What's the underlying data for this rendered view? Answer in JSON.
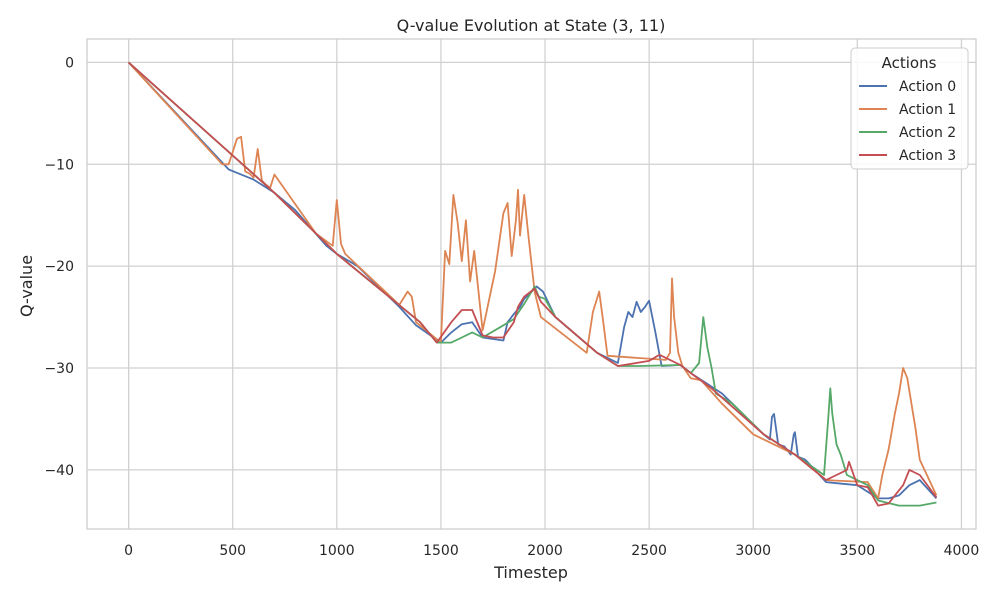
{
  "chart_data": {
    "type": "line",
    "title": "Q-value Evolution at State (3, 11)",
    "xlabel": "Timestep",
    "ylabel": "Q-value",
    "xlim": [
      -200,
      4070
    ],
    "ylim": [
      -45.8,
      2.3
    ],
    "xticks": [
      0,
      500,
      1000,
      1500,
      2000,
      2500,
      3000,
      3500,
      4000
    ],
    "yticks": [
      0,
      -10,
      -20,
      -30,
      -40
    ],
    "xtick_labels": [
      "0",
      "500",
      "1000",
      "1500",
      "2000",
      "2500",
      "3000",
      "3500",
      "4000"
    ],
    "ytick_labels": [
      "0",
      "−10",
      "−20",
      "−30",
      "−40"
    ],
    "grid": true,
    "legend": {
      "title": "Actions",
      "placement": "top-right"
    },
    "series": [
      {
        "name": "Action 0",
        "color": "#4c72b0",
        "x": [
          0,
          480,
          600,
          700,
          800,
          950,
          1000,
          1100,
          1300,
          1380,
          1500,
          1550,
          1600,
          1650,
          1700,
          1800,
          1820,
          1850,
          1880,
          1900,
          1950,
          1960,
          1990,
          2050,
          2250,
          2350,
          2380,
          2400,
          2420,
          2440,
          2460,
          2480,
          2500,
          2530,
          2560,
          2650,
          2700,
          2850,
          3050,
          3080,
          3090,
          3100,
          3120,
          3150,
          3180,
          3195,
          3200,
          3215,
          3250,
          3350,
          3400,
          3450,
          3500,
          3600,
          3650,
          3700,
          3750,
          3800,
          3880
        ],
        "y": [
          0,
          -10.5,
          -11.5,
          -12.8,
          -14.5,
          -18.0,
          -18.8,
          -20.0,
          -24.0,
          -25.8,
          -27.5,
          -26.5,
          -25.7,
          -25.5,
          -27.0,
          -27.3,
          -25.5,
          -24.7,
          -24.0,
          -23.2,
          -22.2,
          -22.0,
          -22.5,
          -25.0,
          -28.5,
          -29.5,
          -26.0,
          -24.5,
          -25.0,
          -23.5,
          -24.5,
          -24.0,
          -23.4,
          -26.5,
          -29.8,
          -29.7,
          -30.5,
          -32.5,
          -36.5,
          -37.0,
          -34.8,
          -34.5,
          -37.5,
          -37.7,
          -38.5,
          -36.5,
          -36.3,
          -38.7,
          -39.0,
          -41.2,
          -41.3,
          -41.4,
          -41.5,
          -42.8,
          -42.8,
          -42.5,
          -41.5,
          -41.0,
          -42.8
        ]
      },
      {
        "name": "Action 1",
        "color": "#dd8452",
        "x": [
          0,
          450,
          480,
          500,
          520,
          540,
          560,
          580,
          600,
          620,
          640,
          660,
          680,
          700,
          900,
          980,
          1000,
          1020,
          1040,
          1300,
          1340,
          1360,
          1380,
          1500,
          1520,
          1540,
          1560,
          1580,
          1600,
          1620,
          1640,
          1660,
          1700,
          1760,
          1800,
          1820,
          1840,
          1860,
          1870,
          1880,
          1900,
          1920,
          1950,
          1980,
          2200,
          2230,
          2260,
          2280,
          2300,
          2580,
          2600,
          2610,
          2620,
          2640,
          2660,
          2700,
          2750,
          2850,
          3000,
          3200,
          3350,
          3550,
          3600,
          3620,
          3650,
          3680,
          3700,
          3720,
          3740,
          3780,
          3800,
          3880
        ],
        "y": [
          0,
          -10.0,
          -10.0,
          -8.8,
          -7.5,
          -7.3,
          -10.7,
          -10.9,
          -11.3,
          -8.5,
          -11.6,
          -12.0,
          -12.3,
          -11.0,
          -16.8,
          -18.0,
          -13.5,
          -17.8,
          -18.8,
          -23.8,
          -22.5,
          -23.0,
          -25.5,
          -27.5,
          -18.5,
          -19.8,
          -13.0,
          -15.7,
          -19.5,
          -15.5,
          -21.5,
          -18.5,
          -26.3,
          -20.5,
          -14.8,
          -13.8,
          -19.0,
          -15.5,
          -12.5,
          -17.0,
          -13.0,
          -17.0,
          -22.5,
          -25.0,
          -28.5,
          -24.5,
          -22.5,
          -25.5,
          -28.8,
          -29.2,
          -28.5,
          -21.2,
          -25.0,
          -28.5,
          -29.8,
          -31.0,
          -31.2,
          -33.5,
          -36.5,
          -38.5,
          -41.0,
          -41.2,
          -42.8,
          -40.5,
          -38.0,
          -34.5,
          -32.5,
          -30.0,
          -31.0,
          -36.0,
          -39.0,
          -42.5
        ]
      },
      {
        "name": "Action 2",
        "color": "#55a868",
        "x": [
          0,
          700,
          1000,
          1400,
          1480,
          1550,
          1600,
          1650,
          1700,
          1800,
          1850,
          1900,
          1950,
          1970,
          2000,
          2050,
          2250,
          2350,
          2450,
          2650,
          2700,
          2740,
          2760,
          2780,
          2800,
          2820,
          2900,
          3050,
          3200,
          3340,
          3360,
          3370,
          3380,
          3400,
          3420,
          3450,
          3550,
          3600,
          3700,
          3800,
          3880
        ],
        "y": [
          0,
          -12.8,
          -18.8,
          -25.5,
          -27.5,
          -27.5,
          -27.0,
          -26.5,
          -27.0,
          -25.8,
          -25.2,
          -23.7,
          -22.0,
          -23.0,
          -23.2,
          -25.0,
          -28.5,
          -29.8,
          -29.8,
          -29.7,
          -30.5,
          -29.5,
          -25.0,
          -28.0,
          -30.0,
          -32.5,
          -33.5,
          -36.5,
          -38.5,
          -40.5,
          -35.0,
          -32.0,
          -34.5,
          -37.5,
          -38.5,
          -40.5,
          -41.5,
          -43.0,
          -43.5,
          -43.5,
          -43.2
        ]
      },
      {
        "name": "Action 3",
        "color": "#c44e52",
        "x": [
          0,
          700,
          1000,
          1400,
          1480,
          1550,
          1600,
          1650,
          1700,
          1750,
          1800,
          1850,
          1870,
          1900,
          1950,
          1980,
          2050,
          2250,
          2350,
          2500,
          2550,
          2650,
          2700,
          2800,
          3050,
          3200,
          3350,
          3400,
          3450,
          3460,
          3500,
          3550,
          3600,
          3650,
          3700,
          3720,
          3750,
          3800,
          3880
        ],
        "y": [
          0,
          -12.8,
          -18.8,
          -25.5,
          -27.5,
          -25.5,
          -24.3,
          -24.3,
          -26.8,
          -27.0,
          -27.0,
          -25.5,
          -24.0,
          -23.0,
          -22.2,
          -23.5,
          -25.0,
          -28.5,
          -29.8,
          -29.3,
          -28.7,
          -29.7,
          -30.5,
          -32.0,
          -36.5,
          -38.5,
          -41.0,
          -40.5,
          -40.0,
          -39.2,
          -41.5,
          -41.7,
          -43.5,
          -43.3,
          -42.0,
          -41.5,
          -40.0,
          -40.5,
          -42.7
        ]
      }
    ]
  }
}
